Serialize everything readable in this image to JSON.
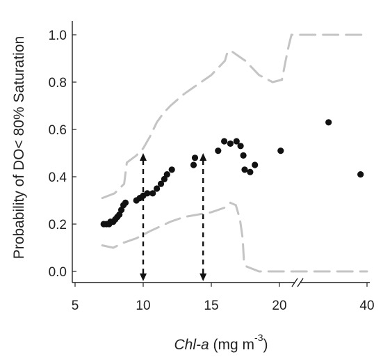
{
  "chart_data": {
    "type": "scatter",
    "xlabel": {
      "italic": "Chl-a",
      "unit": " (mg m",
      "sup": "-3",
      "close": ")"
    },
    "ylabel": "Probability of DO< 80% Saturation",
    "x_ticks": [
      "5",
      "10",
      "15",
      "20",
      "40"
    ],
    "y_ticks": [
      "0.0",
      "0.2",
      "0.4",
      "0.6",
      "0.8",
      "1.0"
    ],
    "x_axis_break": true,
    "ylim": [
      0,
      1
    ],
    "grid": false,
    "points": [
      [
        7.1,
        0.2
      ],
      [
        7.3,
        0.2
      ],
      [
        7.5,
        0.2
      ],
      [
        7.6,
        0.21
      ],
      [
        7.8,
        0.21
      ],
      [
        7.95,
        0.22
      ],
      [
        8.1,
        0.23
      ],
      [
        8.25,
        0.24
      ],
      [
        8.4,
        0.26
      ],
      [
        8.55,
        0.28
      ],
      [
        8.7,
        0.29
      ],
      [
        9.5,
        0.3
      ],
      [
        9.75,
        0.31
      ],
      [
        10.0,
        0.32
      ],
      [
        10.3,
        0.33
      ],
      [
        10.7,
        0.33
      ],
      [
        11.0,
        0.35
      ],
      [
        11.3,
        0.37
      ],
      [
        11.55,
        0.39
      ],
      [
        11.75,
        0.41
      ],
      [
        12.1,
        0.43
      ],
      [
        13.7,
        0.45
      ],
      [
        13.8,
        0.48
      ],
      [
        15.5,
        0.51
      ],
      [
        15.95,
        0.55
      ],
      [
        16.4,
        0.54
      ],
      [
        16.85,
        0.55
      ],
      [
        17.15,
        0.53
      ],
      [
        17.35,
        0.49
      ],
      [
        17.45,
        0.43
      ],
      [
        17.85,
        0.42
      ],
      [
        18.2,
        0.45
      ],
      [
        20.2,
        0.51
      ],
      [
        29.5,
        0.63
      ],
      [
        38.0,
        0.41
      ]
    ],
    "upper_ci": [
      [
        7.0,
        0.31
      ],
      [
        7.9,
        0.33
      ],
      [
        8.6,
        0.37
      ],
      [
        8.8,
        0.46
      ],
      [
        9.5,
        0.49
      ],
      [
        10.0,
        0.52
      ],
      [
        10.5,
        0.57
      ],
      [
        11.0,
        0.63
      ],
      [
        11.5,
        0.67
      ],
      [
        12.0,
        0.7
      ],
      [
        13.0,
        0.75
      ],
      [
        14.0,
        0.79
      ],
      [
        15.0,
        0.83
      ],
      [
        16.0,
        0.89
      ],
      [
        16.2,
        0.93
      ],
      [
        16.5,
        0.93
      ],
      [
        17.0,
        0.91
      ],
      [
        17.5,
        0.89
      ],
      [
        18.0,
        0.86
      ],
      [
        18.5,
        0.83
      ],
      [
        19.5,
        0.8
      ],
      [
        20.4,
        0.81
      ],
      [
        21.0,
        0.89
      ],
      [
        21.5,
        0.95
      ],
      [
        22.0,
        1.0
      ],
      [
        40.0,
        1.0
      ]
    ],
    "lower_ci": [
      [
        7.0,
        0.11
      ],
      [
        7.8,
        0.1
      ],
      [
        8.5,
        0.12
      ],
      [
        9.5,
        0.14
      ],
      [
        10.5,
        0.17
      ],
      [
        12.0,
        0.21
      ],
      [
        13.0,
        0.23
      ],
      [
        14.0,
        0.24
      ],
      [
        15.0,
        0.25
      ],
      [
        16.0,
        0.27
      ],
      [
        16.4,
        0.29
      ],
      [
        16.8,
        0.28
      ],
      [
        17.1,
        0.22
      ],
      [
        17.3,
        0.14
      ],
      [
        17.4,
        0.04
      ],
      [
        17.6,
        0.02
      ],
      [
        18.5,
        0.0
      ],
      [
        40.0,
        0.0
      ]
    ],
    "threshold_arrows": [
      {
        "x": 10.0,
        "y_top": 0.5
      },
      {
        "x": 14.4,
        "y_top": 0.5
      }
    ]
  }
}
